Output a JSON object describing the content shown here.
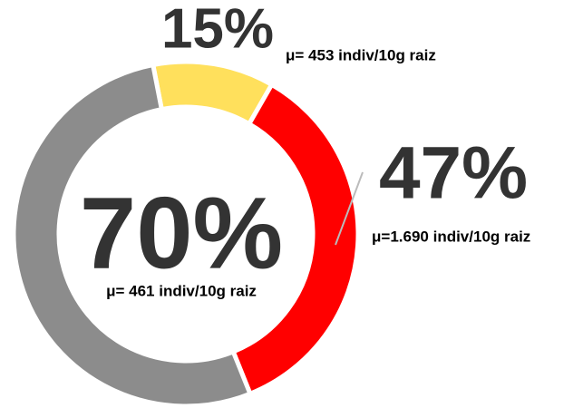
{
  "chart_data": {
    "type": "donut",
    "categories": [
      "μ= 453 indiv/10g raiz",
      "μ=1.690 indiv/10g raiz",
      "μ= 461 indiv/10g raiz"
    ],
    "values": [
      15,
      47,
      70
    ],
    "value_labels": [
      "15%",
      "47%",
      "70%"
    ],
    "colors": [
      "#ffe05c",
      "#ff0000",
      "#8c8c8c"
    ]
  }
}
